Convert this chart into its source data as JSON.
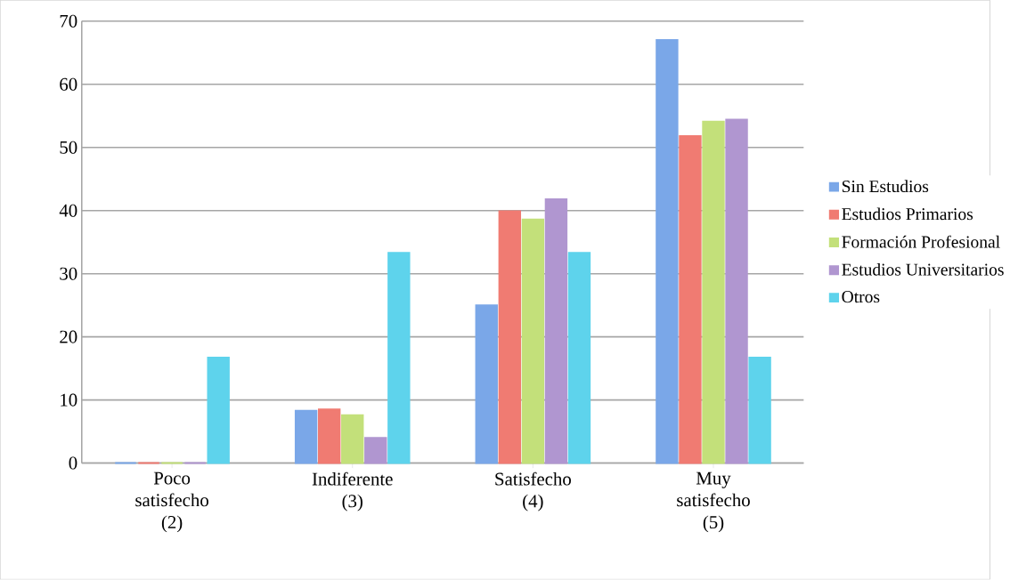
{
  "chart_data": {
    "type": "bar",
    "categories": [
      "Poco satisfecho (2)",
      "Indiferente (3)",
      "Satisfecho (4)",
      "Muy satisfecho (5)"
    ],
    "series": [
      {
        "name": "Sin Estudios",
        "color": "#7aa7e8",
        "values": [
          0,
          8.3,
          25.0,
          67.0
        ]
      },
      {
        "name": "Estudios Primarios",
        "color": "#f07b72",
        "values": [
          0,
          8.5,
          39.9,
          51.8
        ]
      },
      {
        "name": "Formación Profesional",
        "color": "#c3e07a",
        "values": [
          0,
          7.6,
          38.6,
          54.1
        ]
      },
      {
        "name": "Estudios Universitarios",
        "color": "#b096d0",
        "values": [
          0,
          4.0,
          41.8,
          54.4
        ]
      },
      {
        "name": "Otros",
        "color": "#5ed3ec",
        "values": [
          16.7,
          33.3,
          33.3,
          16.7
        ]
      }
    ],
    "ylim": [
      0,
      70
    ],
    "yticks": [
      0,
      10,
      20,
      30,
      40,
      50,
      60,
      70
    ],
    "grid": "y",
    "legend": "right"
  }
}
